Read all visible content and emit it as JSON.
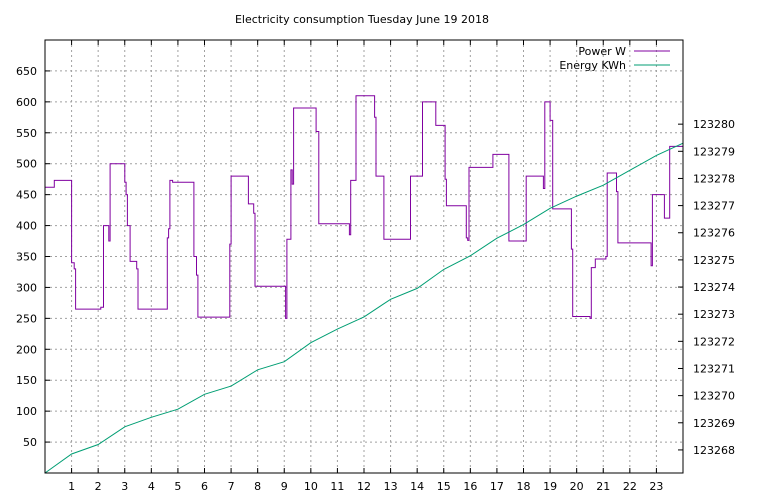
{
  "chart_data": {
    "type": "line",
    "title": "Electricity consumption Tuesday June 19 2018",
    "xlim": [
      0,
      24
    ],
    "x_ticks": [
      1,
      2,
      3,
      4,
      5,
      6,
      7,
      8,
      9,
      10,
      11,
      12,
      13,
      14,
      15,
      16,
      17,
      18,
      19,
      20,
      21,
      22,
      23
    ],
    "y_left": {
      "lim": [
        0,
        700
      ],
      "ticks": [
        50,
        100,
        150,
        200,
        250,
        300,
        350,
        400,
        450,
        500,
        550,
        600,
        650
      ]
    },
    "y_right": {
      "lim": [
        123267.15,
        123283.1
      ],
      "ticks": [
        123268,
        123269,
        123270,
        123271,
        123272,
        123273,
        123274,
        123275,
        123276,
        123277,
        123278,
        123279,
        123280
      ]
    },
    "grid": true,
    "legend": "top-right",
    "series": [
      {
        "name": "Power W",
        "axis": "left",
        "color": "#8000a0",
        "step": true,
        "points": [
          [
            0.0,
            462
          ],
          [
            0.35,
            473
          ],
          [
            1.0,
            340
          ],
          [
            1.1,
            330
          ],
          [
            1.15,
            265
          ],
          [
            2.1,
            268
          ],
          [
            2.2,
            400
          ],
          [
            2.4,
            375
          ],
          [
            2.45,
            500
          ],
          [
            3.0,
            470
          ],
          [
            3.05,
            450
          ],
          [
            3.1,
            400
          ],
          [
            3.2,
            342
          ],
          [
            3.45,
            330
          ],
          [
            3.5,
            265
          ],
          [
            4.6,
            380
          ],
          [
            4.65,
            395
          ],
          [
            4.7,
            473
          ],
          [
            4.8,
            470
          ],
          [
            5.6,
            350
          ],
          [
            5.7,
            320
          ],
          [
            5.75,
            252
          ],
          [
            6.95,
            370
          ],
          [
            7.0,
            480
          ],
          [
            7.65,
            435
          ],
          [
            7.85,
            420
          ],
          [
            7.9,
            302
          ],
          [
            9.05,
            250
          ],
          [
            9.1,
            378
          ],
          [
            9.25,
            490
          ],
          [
            9.3,
            467
          ],
          [
            9.35,
            590
          ],
          [
            10.2,
            552
          ],
          [
            10.3,
            403
          ],
          [
            11.45,
            385
          ],
          [
            11.5,
            473
          ],
          [
            11.7,
            610
          ],
          [
            12.4,
            575
          ],
          [
            12.45,
            480
          ],
          [
            12.75,
            378
          ],
          [
            13.75,
            480
          ],
          [
            14.2,
            600
          ],
          [
            14.7,
            562
          ],
          [
            15.05,
            475
          ],
          [
            15.1,
            432
          ],
          [
            15.85,
            380
          ],
          [
            15.9,
            376
          ],
          [
            15.95,
            494
          ],
          [
            16.85,
            515
          ],
          [
            17.45,
            375
          ],
          [
            18.1,
            480
          ],
          [
            18.75,
            460
          ],
          [
            18.8,
            600
          ],
          [
            19.0,
            570
          ],
          [
            19.1,
            427
          ],
          [
            19.8,
            362
          ],
          [
            19.85,
            253
          ],
          [
            20.5,
            250
          ],
          [
            20.55,
            332
          ],
          [
            20.7,
            346
          ],
          [
            21.1,
            350
          ],
          [
            21.15,
            485
          ],
          [
            21.5,
            455
          ],
          [
            21.55,
            372
          ],
          [
            22.8,
            335
          ],
          [
            22.85,
            450
          ],
          [
            23.3,
            412
          ],
          [
            23.5,
            528
          ],
          [
            24.0,
            528
          ]
        ]
      },
      {
        "name": "Energy KWh",
        "axis": "right",
        "color": "#009e73",
        "step": false,
        "points": [
          [
            0.0,
            123267.15
          ],
          [
            1.0,
            123267.85
          ],
          [
            2.0,
            123268.2
          ],
          [
            3.0,
            123268.85
          ],
          [
            4.0,
            123269.2
          ],
          [
            5.0,
            123269.5
          ],
          [
            6.0,
            123270.05
          ],
          [
            7.0,
            123270.35
          ],
          [
            8.0,
            123270.95
          ],
          [
            9.0,
            123271.25
          ],
          [
            10.0,
            123271.95
          ],
          [
            11.0,
            123272.45
          ],
          [
            12.0,
            123272.9
          ],
          [
            13.0,
            123273.55
          ],
          [
            14.0,
            123273.95
          ],
          [
            15.0,
            123274.65
          ],
          [
            16.0,
            123275.15
          ],
          [
            17.0,
            123275.8
          ],
          [
            18.0,
            123276.3
          ],
          [
            19.0,
            123276.9
          ],
          [
            20.0,
            123277.35
          ],
          [
            21.0,
            123277.75
          ],
          [
            22.0,
            123278.3
          ],
          [
            23.0,
            123278.85
          ],
          [
            24.0,
            123279.3
          ]
        ]
      }
    ]
  }
}
